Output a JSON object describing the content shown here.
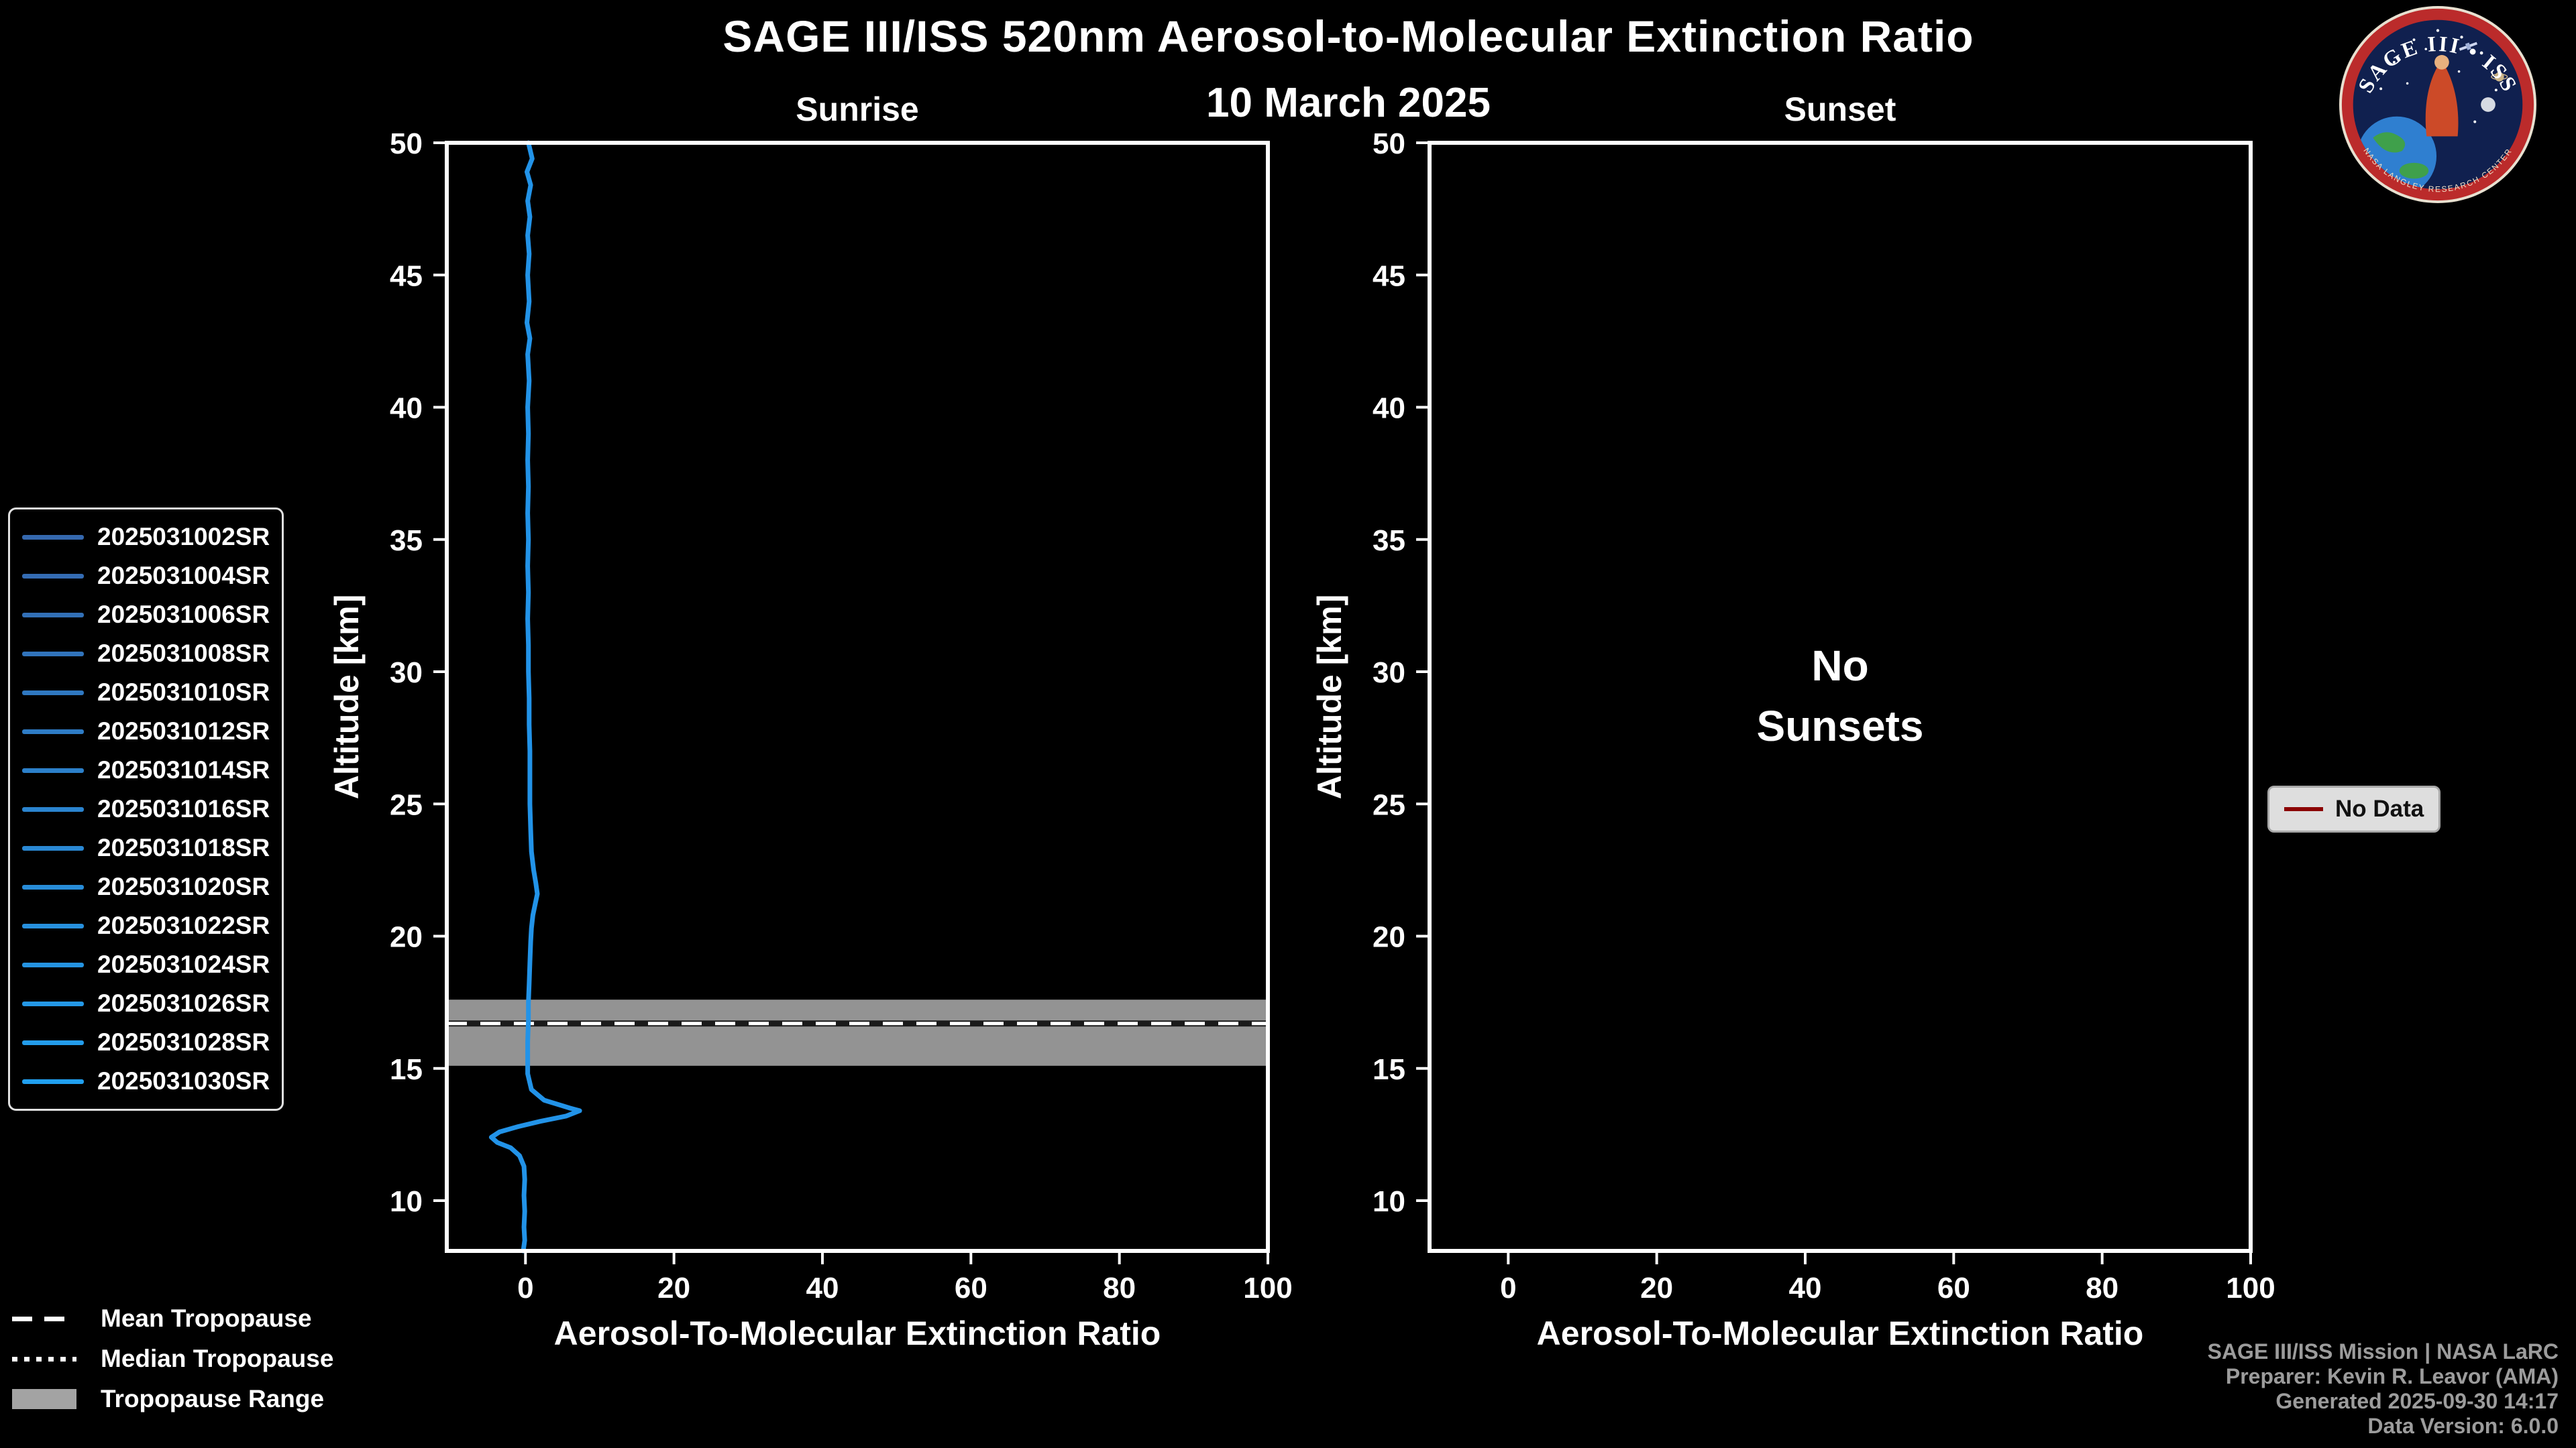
{
  "header": {
    "title": "SAGE III/ISS 520nm Aerosol-to-Molecular Extinction Ratio",
    "date": "10 March 2025"
  },
  "logo": {
    "main_text": "SAGE III • ISS",
    "ring_text": "NASA LANGLEY RESEARCH CENTER"
  },
  "chart_data": [
    {
      "id": "sunrise",
      "type": "line",
      "title": "Sunrise",
      "xlabel": "Aerosol-To-Molecular Extinction Ratio",
      "ylabel": "Altitude [km]",
      "xlim": [
        -10.6,
        100
      ],
      "ylim": [
        8.1,
        50
      ],
      "xticks": [
        0,
        20,
        40,
        60,
        80,
        100
      ],
      "yticks": [
        10,
        15,
        20,
        25,
        30,
        35,
        40,
        45,
        50
      ],
      "grid": false,
      "legend_position": "outside-left",
      "series": [
        {
          "name": "sunrise-composite-profile",
          "color": "#2293e8",
          "points": [
            [
              0.4,
              50
            ],
            [
              0.9,
              49.4
            ],
            [
              0.2,
              48.9
            ],
            [
              0.7,
              48.4
            ],
            [
              0.3,
              47.8
            ],
            [
              0.6,
              47.2
            ],
            [
              0.3,
              46.5
            ],
            [
              0.5,
              45.8
            ],
            [
              0.3,
              45.0
            ],
            [
              0.5,
              44.0
            ],
            [
              0.2,
              43.2
            ],
            [
              0.6,
              42.6
            ],
            [
              0.3,
              42.0
            ],
            [
              0.5,
              41.0
            ],
            [
              0.3,
              40.0
            ],
            [
              0.4,
              39.0
            ],
            [
              0.3,
              38.0
            ],
            [
              0.4,
              37.0
            ],
            [
              0.3,
              36.0
            ],
            [
              0.4,
              35.0
            ],
            [
              0.3,
              34.0
            ],
            [
              0.4,
              33.0
            ],
            [
              0.3,
              32.0
            ],
            [
              0.4,
              31.0
            ],
            [
              0.4,
              30.0
            ],
            [
              0.5,
              29.0
            ],
            [
              0.5,
              28.0
            ],
            [
              0.6,
              27.0
            ],
            [
              0.6,
              26.0
            ],
            [
              0.6,
              25.0
            ],
            [
              0.7,
              24.0
            ],
            [
              0.8,
              23.2
            ],
            [
              1.1,
              22.5
            ],
            [
              1.4,
              22.0
            ],
            [
              1.6,
              21.6
            ],
            [
              1.3,
              21.2
            ],
            [
              1.0,
              20.8
            ],
            [
              0.8,
              20.3
            ],
            [
              0.7,
              19.8
            ],
            [
              0.6,
              19.0
            ],
            [
              0.5,
              18.2
            ],
            [
              0.4,
              17.5
            ],
            [
              0.4,
              16.8
            ],
            [
              0.3,
              16.0
            ],
            [
              0.3,
              15.4
            ],
            [
              0.3,
              14.8
            ],
            [
              0.8,
              14.2
            ],
            [
              2.5,
              13.8
            ],
            [
              6.0,
              13.5
            ],
            [
              7.3,
              13.4
            ],
            [
              5.5,
              13.2
            ],
            [
              2.0,
              13.0
            ],
            [
              -1.0,
              12.8
            ],
            [
              -3.5,
              12.6
            ],
            [
              -4.6,
              12.4
            ],
            [
              -3.8,
              12.2
            ],
            [
              -2.0,
              12.0
            ],
            [
              -0.8,
              11.7
            ],
            [
              -0.2,
              11.3
            ],
            [
              -0.1,
              10.8
            ],
            [
              -0.2,
              10.2
            ],
            [
              -0.1,
              9.6
            ],
            [
              -0.2,
              9.0
            ],
            [
              -0.1,
              8.5
            ],
            [
              -0.3,
              8.1
            ]
          ]
        }
      ],
      "tropopause": {
        "mean_km": 16.7,
        "range_km": [
          15.1,
          17.6
        ],
        "band_color": "#a3a3a3"
      }
    },
    {
      "id": "sunset",
      "type": "line",
      "title": "Sunset",
      "xlabel": "Aerosol-To-Molecular Extinction Ratio",
      "ylabel": "Altitude [km]",
      "xlim": [
        -10.6,
        100
      ],
      "ylim": [
        8.1,
        50
      ],
      "xticks": [
        0,
        20,
        40,
        60,
        80,
        100
      ],
      "yticks": [
        10,
        15,
        20,
        25,
        30,
        35,
        40,
        45,
        50
      ],
      "grid": false,
      "series": [],
      "annotation": [
        "No",
        "Sunsets"
      ]
    }
  ],
  "event_legend": {
    "items": [
      {
        "label": "2025031002SR",
        "color": "#3568ae"
      },
      {
        "label": "2025031004SR",
        "color": "#346cb3"
      },
      {
        "label": "2025031006SR",
        "color": "#3270b7"
      },
      {
        "label": "2025031008SR",
        "color": "#3174bc"
      },
      {
        "label": "2025031010SR",
        "color": "#2f78c1"
      },
      {
        "label": "2025031012SR",
        "color": "#2e7cc6"
      },
      {
        "label": "2025031014SR",
        "color": "#2c80ca"
      },
      {
        "label": "2025031016SR",
        "color": "#2b84cf"
      },
      {
        "label": "2025031018SR",
        "color": "#2a88d4"
      },
      {
        "label": "2025031020SR",
        "color": "#288cd8"
      },
      {
        "label": "2025031022SR",
        "color": "#2790dd"
      },
      {
        "label": "2025031024SR",
        "color": "#2594e2"
      },
      {
        "label": "2025031026SR",
        "color": "#2498e7"
      },
      {
        "label": "2025031028SR",
        "color": "#239ceb"
      },
      {
        "label": "2025031030SR",
        "color": "#21a0f0"
      }
    ]
  },
  "tropopause_legend": {
    "mean": "Mean Tropopause",
    "median": "Median Tropopause",
    "range": "Tropopause Range",
    "range_color": "#a3a3a3"
  },
  "no_data_legend": {
    "label": "No Data",
    "color": "#8b0000"
  },
  "footer": {
    "lines": [
      "SAGE III/ISS Mission | NASA LaRC",
      "Preparer: Kevin R. Leavor (AMA)",
      "Generated 2025-09-30 14:17",
      "Data Version: 6.0.0"
    ]
  }
}
